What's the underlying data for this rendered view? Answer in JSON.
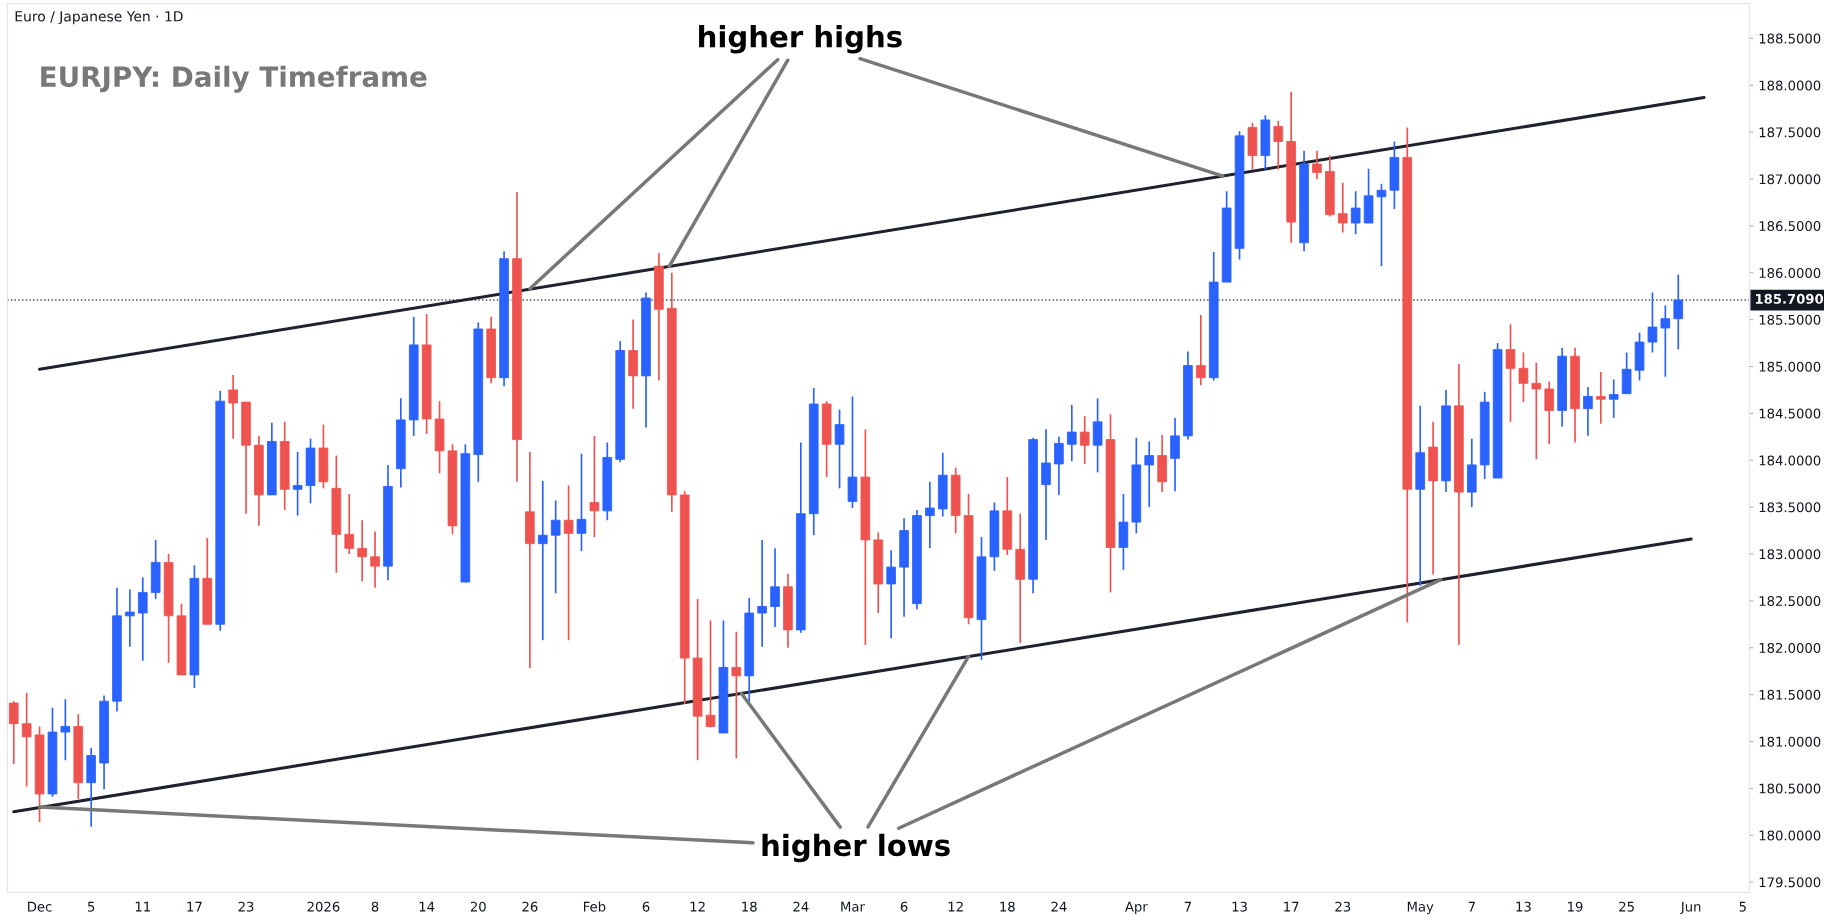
{
  "chart_data": {
    "type": "candlestick",
    "title": "Euro / Japanese Yen · 1D",
    "annotations": [
      "EURJPY: Daily Timeframe",
      {
        "text": "higher highs",
        "x": "26",
        "y": 185.83
      },
      {
        "text": "higher lows",
        "x": "Dec",
        "y": 180.3
      }
    ],
    "categories": [
      null,
      null,
      "Dec",
      null,
      null,
      null,
      "5",
      null,
      null,
      null,
      "11",
      null,
      null,
      null,
      "17",
      null,
      null,
      null,
      "23",
      null,
      null,
      null,
      null,
      null,
      "2026",
      null,
      null,
      null,
      "8",
      null,
      null,
      null,
      "14",
      null,
      null,
      null,
      "20",
      null,
      null,
      null,
      "26",
      null,
      null,
      null,
      null,
      "Feb",
      null,
      null,
      null,
      "6",
      null,
      null,
      null,
      "12",
      null,
      null,
      null,
      "18",
      null,
      null,
      null,
      "24",
      null,
      null,
      null,
      "Mar",
      null,
      null,
      null,
      "6",
      null,
      null,
      null,
      "12",
      null,
      null,
      null,
      "18",
      null,
      null,
      null,
      "24",
      null,
      null,
      null,
      null,
      null,
      "Apr",
      null,
      null,
      null,
      "7",
      null,
      null,
      null,
      "13",
      null,
      null,
      null,
      "17",
      null,
      null,
      null,
      "23",
      null,
      null,
      null,
      null,
      null,
      "May",
      null,
      null,
      null,
      "7",
      null,
      null,
      null,
      "13",
      null,
      null,
      null,
      "19",
      null,
      null,
      null,
      "25",
      null,
      null,
      null,
      null,
      "Jun",
      null,
      null,
      null,
      "5"
    ],
    "ohlc": [
      [
        181.41,
        181.43,
        180.76,
        181.19
      ],
      [
        181.19,
        181.52,
        180.52,
        181.05
      ],
      [
        181.07,
        181.16,
        180.14,
        180.44
      ],
      [
        180.44,
        181.36,
        180.41,
        181.1
      ],
      [
        181.1,
        181.45,
        180.8,
        181.16
      ],
      [
        181.16,
        181.29,
        180.39,
        180.56
      ],
      [
        180.56,
        180.93,
        180.09,
        180.85
      ],
      [
        180.77,
        181.49,
        180.49,
        181.43
      ],
      [
        181.43,
        182.64,
        181.32,
        182.34
      ],
      [
        182.34,
        182.62,
        182.01,
        182.38
      ],
      [
        182.37,
        182.75,
        181.86,
        182.59
      ],
      [
        182.59,
        183.15,
        182.52,
        182.91
      ],
      [
        182.91,
        183.0,
        181.84,
        182.34
      ],
      [
        182.34,
        182.47,
        181.71,
        181.71
      ],
      [
        181.71,
        182.88,
        181.57,
        182.74
      ],
      [
        182.74,
        183.17,
        182.25,
        182.25
      ],
      [
        182.25,
        184.74,
        182.18,
        184.63
      ],
      [
        184.75,
        184.91,
        184.23,
        184.61
      ],
      [
        184.62,
        184.62,
        183.43,
        184.16
      ],
      [
        184.16,
        184.26,
        183.3,
        183.63
      ],
      [
        183.63,
        184.4,
        183.63,
        184.2
      ],
      [
        184.2,
        184.41,
        183.47,
        183.69
      ],
      [
        183.69,
        184.09,
        183.41,
        183.73
      ],
      [
        183.73,
        184.23,
        183.54,
        184.13
      ],
      [
        184.13,
        184.38,
        183.7,
        183.77
      ],
      [
        183.7,
        184.05,
        182.8,
        183.21
      ],
      [
        183.21,
        183.64,
        183.0,
        183.06
      ],
      [
        183.06,
        183.36,
        182.71,
        182.97
      ],
      [
        182.97,
        183.24,
        182.64,
        182.87
      ],
      [
        182.87,
        183.95,
        182.72,
        183.72
      ],
      [
        183.91,
        184.66,
        183.71,
        184.43
      ],
      [
        184.43,
        185.53,
        184.26,
        185.23
      ],
      [
        185.23,
        185.56,
        184.28,
        184.44
      ],
      [
        184.44,
        184.63,
        183.86,
        184.1
      ],
      [
        184.1,
        184.17,
        183.21,
        183.3
      ],
      [
        182.7,
        184.17,
        182.7,
        184.07
      ],
      [
        184.06,
        185.47,
        183.77,
        185.4
      ],
      [
        185.4,
        185.53,
        184.82,
        184.88
      ],
      [
        184.88,
        186.23,
        184.79,
        186.15
      ],
      [
        186.15,
        186.86,
        183.77,
        184.22
      ],
      [
        183.45,
        184.09,
        181.78,
        183.11
      ],
      [
        183.11,
        183.78,
        182.08,
        183.2
      ],
      [
        183.2,
        183.57,
        182.58,
        183.36
      ],
      [
        183.36,
        183.73,
        182.08,
        183.22
      ],
      [
        183.22,
        184.07,
        183.03,
        183.37
      ],
      [
        183.55,
        184.26,
        183.18,
        183.46
      ],
      [
        183.46,
        184.19,
        183.36,
        184.03
      ],
      [
        184.01,
        185.27,
        183.98,
        185.17
      ],
      [
        185.17,
        185.5,
        184.55,
        184.9
      ],
      [
        184.9,
        185.79,
        184.35,
        185.73
      ],
      [
        186.07,
        186.21,
        184.85,
        185.61
      ],
      [
        185.62,
        186.0,
        183.45,
        183.63
      ],
      [
        183.63,
        183.67,
        181.4,
        181.89
      ],
      [
        181.89,
        182.52,
        180.8,
        181.27
      ],
      [
        181.28,
        182.29,
        181.15,
        181.16
      ],
      [
        181.09,
        182.29,
        181.09,
        181.79
      ],
      [
        181.79,
        182.17,
        180.82,
        181.7
      ],
      [
        181.7,
        182.53,
        181.41,
        182.37
      ],
      [
        182.37,
        183.15,
        182.01,
        182.44
      ],
      [
        182.44,
        183.06,
        182.22,
        182.65
      ],
      [
        182.65,
        182.79,
        182.0,
        182.19
      ],
      [
        182.19,
        184.19,
        182.16,
        183.43
      ],
      [
        183.43,
        184.77,
        183.2,
        184.6
      ],
      [
        184.6,
        184.63,
        183.82,
        184.17
      ],
      [
        184.17,
        184.54,
        183.7,
        184.38
      ],
      [
        183.56,
        184.68,
        183.49,
        183.82
      ],
      [
        183.82,
        184.33,
        182.03,
        183.15
      ],
      [
        183.15,
        183.23,
        182.37,
        182.68
      ],
      [
        182.68,
        183.04,
        182.1,
        182.86
      ],
      [
        182.86,
        183.38,
        182.33,
        183.25
      ],
      [
        182.47,
        183.47,
        182.41,
        183.41
      ],
      [
        183.41,
        183.77,
        183.06,
        183.49
      ],
      [
        183.48,
        184.08,
        183.4,
        183.84
      ],
      [
        183.84,
        183.92,
        183.22,
        183.41
      ],
      [
        183.41,
        183.64,
        182.25,
        182.32
      ],
      [
        182.3,
        183.18,
        181.87,
        182.97
      ],
      [
        182.97,
        183.55,
        182.82,
        183.46
      ],
      [
        183.46,
        183.82,
        182.99,
        183.05
      ],
      [
        183.05,
        183.43,
        182.05,
        182.73
      ],
      [
        182.73,
        184.24,
        182.58,
        184.22
      ],
      [
        183.74,
        184.33,
        183.15,
        183.97
      ],
      [
        183.96,
        184.25,
        183.63,
        184.18
      ],
      [
        184.17,
        184.59,
        183.99,
        184.3
      ],
      [
        184.3,
        184.47,
        183.96,
        184.16
      ],
      [
        184.16,
        184.66,
        183.87,
        184.41
      ],
      [
        184.22,
        184.49,
        182.59,
        183.07
      ],
      [
        183.07,
        183.64,
        182.83,
        183.34
      ],
      [
        183.34,
        184.24,
        183.22,
        183.95
      ],
      [
        183.95,
        184.2,
        183.5,
        184.05
      ],
      [
        184.05,
        184.27,
        183.66,
        183.77
      ],
      [
        184.02,
        184.45,
        183.67,
        184.26
      ],
      [
        184.26,
        185.16,
        184.22,
        185.01
      ],
      [
        185.01,
        185.55,
        184.8,
        184.88
      ],
      [
        184.88,
        186.22,
        184.85,
        185.9
      ],
      [
        185.9,
        186.87,
        185.9,
        186.69
      ],
      [
        186.26,
        187.51,
        186.14,
        187.46
      ],
      [
        187.55,
        187.6,
        187.1,
        187.25
      ],
      [
        187.25,
        187.68,
        187.1,
        187.63
      ],
      [
        187.56,
        187.62,
        187.1,
        187.4
      ],
      [
        187.4,
        187.93,
        186.32,
        186.54
      ],
      [
        186.32,
        187.3,
        186.23,
        187.16
      ],
      [
        187.16,
        187.3,
        187.0,
        187.07
      ],
      [
        187.08,
        187.25,
        186.6,
        186.62
      ],
      [
        186.63,
        186.96,
        186.43,
        186.53
      ],
      [
        186.53,
        186.87,
        186.41,
        186.69
      ],
      [
        186.53,
        187.11,
        186.53,
        186.82
      ],
      [
        186.81,
        186.95,
        186.07,
        186.88
      ],
      [
        186.88,
        187.4,
        186.68,
        187.23
      ],
      [
        187.23,
        187.55,
        182.27,
        183.69
      ],
      [
        183.69,
        184.58,
        182.66,
        184.08
      ],
      [
        184.14,
        184.41,
        182.78,
        183.78
      ],
      [
        183.78,
        184.75,
        183.66,
        184.58
      ],
      [
        184.58,
        185.03,
        182.03,
        183.66
      ],
      [
        183.66,
        184.23,
        183.5,
        183.95
      ],
      [
        183.95,
        184.73,
        183.8,
        184.62
      ],
      [
        183.81,
        185.25,
        183.81,
        185.18
      ],
      [
        185.18,
        185.45,
        184.41,
        184.98
      ],
      [
        184.98,
        185.15,
        184.62,
        184.82
      ],
      [
        184.82,
        185.04,
        184.01,
        184.76
      ],
      [
        184.76,
        184.84,
        184.17,
        184.53
      ],
      [
        184.53,
        185.2,
        184.36,
        185.11
      ],
      [
        185.11,
        185.2,
        184.19,
        184.55
      ],
      [
        184.55,
        184.78,
        184.26,
        184.68
      ],
      [
        184.68,
        184.94,
        184.39,
        184.65
      ],
      [
        184.65,
        184.86,
        184.45,
        184.7
      ],
      [
        184.71,
        185.15,
        184.71,
        184.97
      ],
      [
        184.96,
        185.36,
        184.85,
        185.26
      ],
      [
        185.26,
        185.79,
        185.15,
        185.42
      ],
      [
        185.41,
        185.65,
        184.89,
        185.51
      ],
      [
        185.51,
        185.98,
        185.18,
        185.71
      ],
      null,
      null,
      null,
      null,
      null
    ],
    "colors": [
      "#ef5350",
      "#ef5350",
      "#ef5350",
      "#2962ff",
      "#2962ff",
      "#ef5350",
      "#2962ff",
      "#2962ff",
      "#2962ff",
      "#2962ff",
      "#2962ff",
      "#2962ff",
      "#ef5350",
      "#ef5350",
      "#2962ff",
      "#ef5350",
      "#2962ff",
      "#ef5350",
      "#ef5350",
      "#ef5350",
      "#2962ff",
      "#ef5350",
      "#2962ff",
      "#2962ff",
      "#ef5350",
      "#ef5350",
      "#ef5350",
      "#ef5350",
      "#ef5350",
      "#2962ff",
      "#2962ff",
      "#2962ff",
      "#ef5350",
      "#ef5350",
      "#ef5350",
      "#2962ff",
      "#2962ff",
      "#ef5350",
      "#2962ff",
      "#ef5350",
      "#ef5350",
      "#2962ff",
      "#2962ff",
      "#ef5350",
      "#2962ff",
      "#ef5350",
      "#2962ff",
      "#2962ff",
      "#ef5350",
      "#2962ff",
      "#ef5350",
      "#ef5350",
      "#ef5350",
      "#ef5350",
      "#ef5350",
      "#2962ff",
      "#ef5350",
      "#2962ff",
      "#2962ff",
      "#2962ff",
      "#ef5350",
      "#2962ff",
      "#2962ff",
      "#ef5350",
      "#2962ff",
      "#2962ff",
      "#ef5350",
      "#ef5350",
      "#2962ff",
      "#2962ff",
      "#2962ff",
      "#2962ff",
      "#2962ff",
      "#ef5350",
      "#ef5350",
      "#2962ff",
      "#2962ff",
      "#ef5350",
      "#ef5350",
      "#2962ff",
      "#2962ff",
      "#2962ff",
      "#2962ff",
      "#ef5350",
      "#2962ff",
      "#ef5350",
      "#2962ff",
      "#2962ff",
      "#2962ff",
      "#ef5350",
      "#2962ff",
      "#2962ff",
      "#ef5350",
      "#2962ff",
      "#2962ff",
      "#2962ff",
      "#ef5350",
      "#2962ff",
      "#ef5350",
      "#ef5350",
      "#2962ff",
      "#ef5350",
      "#ef5350",
      "#ef5350",
      "#2962ff",
      "#2962ff",
      "#2962ff",
      "#2962ff",
      "#ef5350",
      "#2962ff",
      "#ef5350",
      "#2962ff",
      "#ef5350",
      "#2962ff",
      "#2962ff",
      "#2962ff",
      "#ef5350",
      "#ef5350",
      "#ef5350",
      "#ef5350",
      "#2962ff",
      "#ef5350",
      "#2962ff",
      "#ef5350",
      "#2962ff",
      "#2962ff",
      "#2962ff",
      "#2962ff",
      "#2962ff",
      "#2962ff",
      null,
      null,
      null,
      null,
      null
    ],
    "series": [
      {
        "type": "line",
        "color": "#1e222d",
        "values": [
          null,
          null,
          184.97,
          null,
          null,
          null,
          null,
          null,
          null,
          null,
          null,
          null,
          null,
          null,
          null,
          null,
          null,
          null,
          null,
          null,
          null,
          null,
          null,
          null,
          null,
          null,
          null,
          null,
          null,
          null,
          null,
          null,
          null,
          null,
          null,
          null,
          null,
          null,
          null,
          null,
          null,
          null,
          null,
          null,
          null,
          null,
          null,
          null,
          null,
          null,
          null,
          null,
          null,
          null,
          null,
          null,
          null,
          null,
          null,
          null,
          null,
          null,
          null,
          null,
          null,
          null,
          null,
          null,
          null,
          null,
          null,
          null,
          null,
          null,
          null,
          null,
          null,
          null,
          null,
          null,
          null,
          null,
          null,
          null,
          null,
          null,
          null,
          null,
          null,
          null,
          null,
          null,
          null,
          null,
          null,
          null,
          null,
          null,
          null,
          null,
          null,
          null,
          null,
          null,
          null,
          null,
          null,
          null,
          null,
          null,
          null,
          null,
          null,
          null,
          null,
          null,
          null,
          null,
          null,
          null,
          null,
          null,
          null,
          null,
          null,
          null,
          null,
          null,
          null,
          null,
          null,
          187.87,
          null,
          null,
          null
        ]
      },
      {
        "type": "line",
        "color": "#1e222d",
        "values": [
          180.25,
          null,
          null,
          null,
          null,
          null,
          null,
          null,
          null,
          null,
          null,
          null,
          null,
          null,
          null,
          null,
          null,
          null,
          null,
          null,
          null,
          null,
          null,
          null,
          null,
          null,
          null,
          null,
          null,
          null,
          null,
          null,
          null,
          null,
          null,
          null,
          null,
          null,
          null,
          null,
          null,
          null,
          null,
          null,
          null,
          null,
          null,
          null,
          null,
          null,
          null,
          null,
          null,
          null,
          null,
          null,
          null,
          null,
          null,
          null,
          null,
          null,
          null,
          null,
          null,
          null,
          null,
          null,
          null,
          null,
          null,
          null,
          null,
          null,
          null,
          null,
          null,
          null,
          null,
          null,
          null,
          null,
          null,
          null,
          null,
          null,
          null,
          null,
          null,
          null,
          null,
          null,
          null,
          null,
          null,
          null,
          null,
          null,
          null,
          null,
          null,
          null,
          null,
          null,
          null,
          null,
          null,
          null,
          null,
          null,
          null,
          null,
          null,
          null,
          null,
          null,
          null,
          null,
          null,
          null,
          null,
          null,
          null,
          null,
          null,
          null,
          null,
          null,
          null,
          null,
          183.16,
          null,
          null,
          null,
          null
        ]
      }
    ],
    "ref_lines": [
      {
        "axis": "y",
        "value": 185.709,
        "label": "185.7090",
        "line_style": "dotted",
        "color": "#434651"
      }
    ],
    "ylim": [
      179.39,
      188.87
    ],
    "yticks": [
      {
        "value": 179.5,
        "label": "179.5000"
      },
      {
        "value": 180,
        "label": "180.0000"
      },
      {
        "value": 180.5,
        "label": "180.5000"
      },
      {
        "value": 181,
        "label": "181.0000"
      },
      {
        "value": 181.5,
        "label": "181.5000"
      },
      {
        "value": 182,
        "label": "182.0000"
      },
      {
        "value": 182.5,
        "label": "182.5000"
      },
      {
        "value": 183,
        "label": "183.0000"
      },
      {
        "value": 183.5,
        "label": "183.5000"
      },
      {
        "value": 184,
        "label": "184.0000"
      },
      {
        "value": 184.5,
        "label": "184.5000"
      },
      {
        "value": 185,
        "label": "185.0000"
      },
      {
        "value": 185.5,
        "label": "185.5000"
      },
      {
        "value": 186,
        "label": "186.0000"
      },
      {
        "value": 186.5,
        "label": "186.5000"
      },
      {
        "value": 187,
        "label": "187.0000"
      },
      {
        "value": 187.5,
        "label": "187.5000"
      },
      {
        "value": 188,
        "label": "188.0000"
      },
      {
        "value": 188.5,
        "label": "188.5000"
      }
    ],
    "grid": false,
    "legend": false
  }
}
